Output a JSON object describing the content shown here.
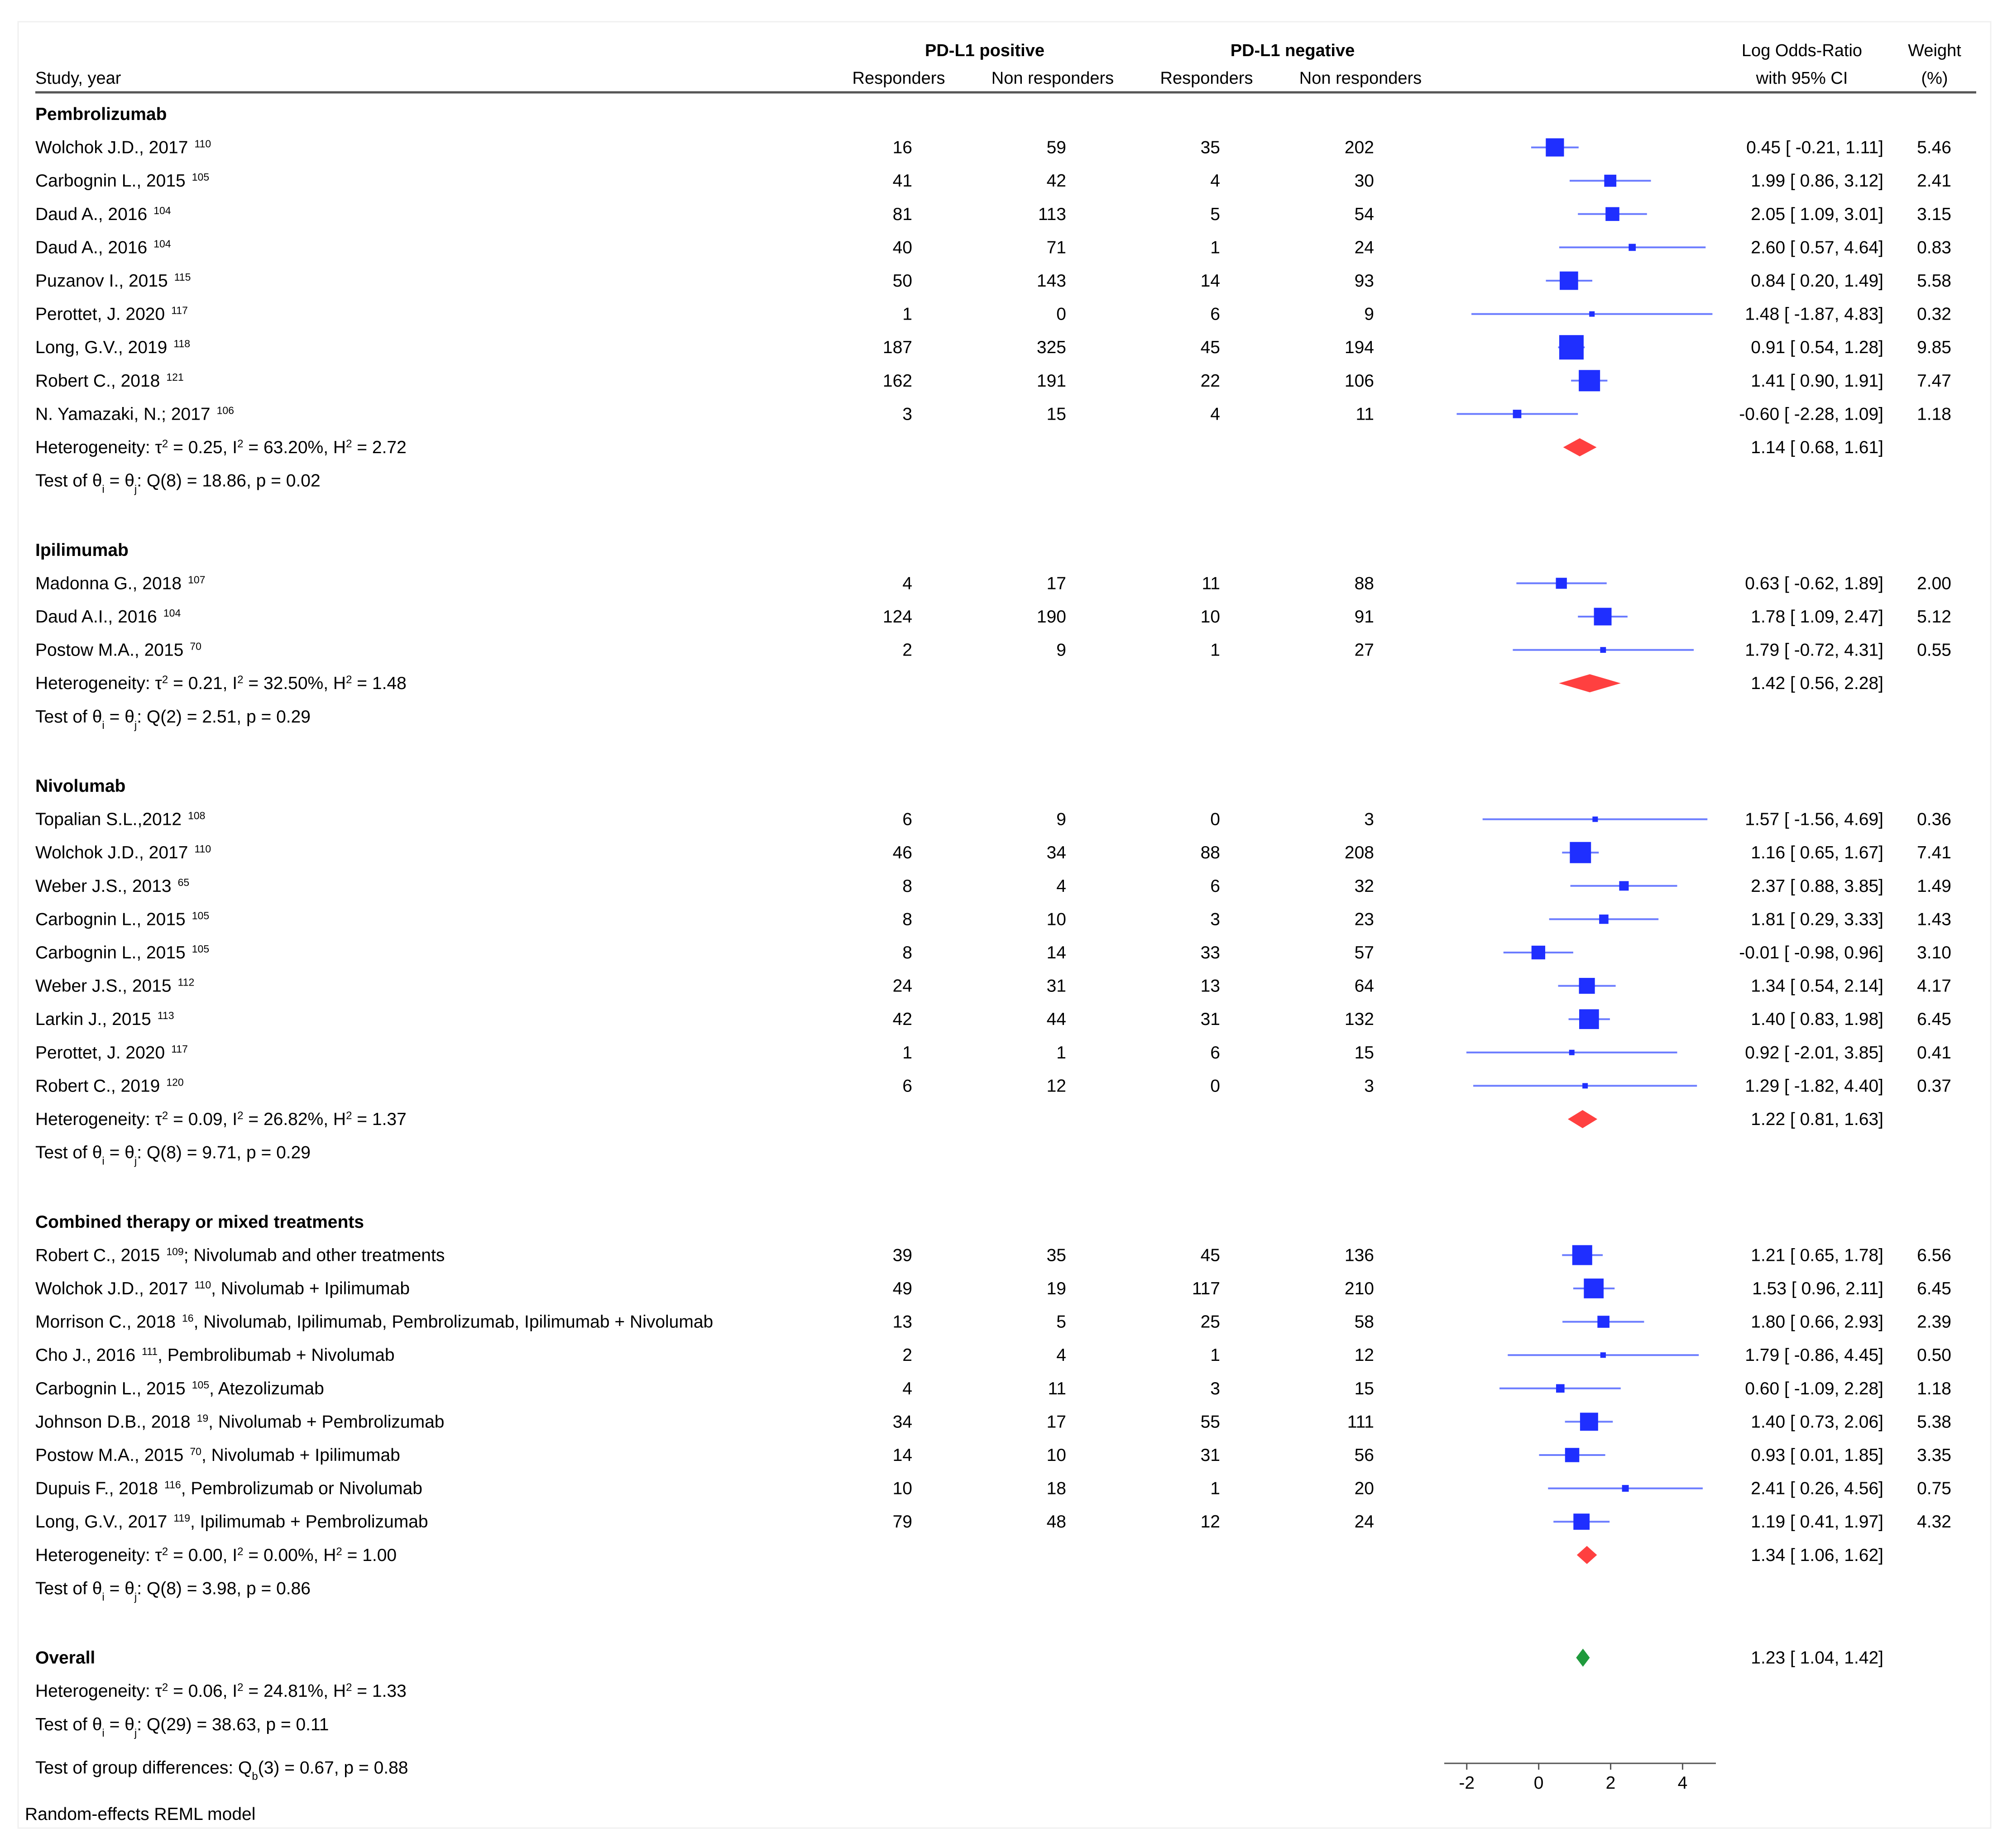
{
  "header": {
    "study": "Study, year",
    "group_positive": "PD-L1 positive",
    "group_negative": "PD-L1 negative",
    "responders": "Responders",
    "non_responders": "Non responders",
    "effect_line1": "Log Odds-Ratio",
    "effect_line2": "with 95% CI",
    "weight_line1": "Weight",
    "weight_line2": "(%)"
  },
  "colors": {
    "study_marker": "#1f2fff",
    "study_ci": "#6b7cff",
    "subgroup_diamond": "#ff4040",
    "overall_diamond": "#1f9a3c",
    "axis": "#555555"
  },
  "chart_data": {
    "type": "forest",
    "xlabel": "",
    "xlim": [
      -2.5,
      4.8
    ],
    "xticks": [
      -2,
      0,
      2,
      4
    ],
    "model": "Random-effects REML model",
    "group_differences": {
      "prefix": "Test of group differences: Q",
      "subscript": "b",
      "suffix": "(3) = 0.67, p = 0.88"
    },
    "groups": [
      {
        "name": "Pembrolizumab",
        "studies": [
          {
            "label": "Wolchok J.D., 2017",
            "ref": "110",
            "note": "",
            "pos_r": "16",
            "pos_nr": "59",
            "neg_r": "35",
            "neg_nr": "202",
            "est": 0.45,
            "lo": -0.21,
            "hi": 1.11,
            "effect": "0.45 [ -0.21,  1.11]",
            "weight": "5.46"
          },
          {
            "label": "Carbognin L., 2015",
            "ref": "105",
            "note": "",
            "pos_r": "41",
            "pos_nr": "42",
            "neg_r": "4",
            "neg_nr": "30",
            "est": 1.99,
            "lo": 0.86,
            "hi": 3.12,
            "effect": "1.99 [  0.86,  3.12]",
            "weight": "2.41"
          },
          {
            "label": "Daud A., 2016",
            "ref": "104",
            "note": "",
            "pos_r": "81",
            "pos_nr": "113",
            "neg_r": "5",
            "neg_nr": "54",
            "est": 2.05,
            "lo": 1.09,
            "hi": 3.01,
            "effect": "2.05 [  1.09,  3.01]",
            "weight": "3.15"
          },
          {
            "label": "Daud A., 2016",
            "ref": "104",
            "note": "",
            "pos_r": "40",
            "pos_nr": "71",
            "neg_r": "1",
            "neg_nr": "24",
            "est": 2.6,
            "lo": 0.57,
            "hi": 4.64,
            "effect": "2.60 [  0.57,  4.64]",
            "weight": "0.83"
          },
          {
            "label": "Puzanov I., 2015",
            "ref": "115",
            "note": "",
            "pos_r": "50",
            "pos_nr": "143",
            "neg_r": "14",
            "neg_nr": "93",
            "est": 0.84,
            "lo": 0.2,
            "hi": 1.49,
            "effect": "0.84 [  0.20,  1.49]",
            "weight": "5.58"
          },
          {
            "label": "Perottet, J. 2020",
            "ref": "117",
            "note": "",
            "pos_r": "1",
            "pos_nr": "0",
            "neg_r": "6",
            "neg_nr": "9",
            "est": 1.48,
            "lo": -1.87,
            "hi": 4.83,
            "effect": "1.48 [ -1.87,  4.83]",
            "weight": "0.32"
          },
          {
            "label": "Long, G.V., 2019",
            "ref": "118",
            "note": "",
            "pos_r": "187",
            "pos_nr": "325",
            "neg_r": "45",
            "neg_nr": "194",
            "est": 0.91,
            "lo": 0.54,
            "hi": 1.28,
            "effect": "0.91 [  0.54,  1.28]",
            "weight": "9.85"
          },
          {
            "label": "Robert C., 2018",
            "ref": "121",
            "note": "",
            "pos_r": "162",
            "pos_nr": "191",
            "neg_r": "22",
            "neg_nr": "106",
            "est": 1.41,
            "lo": 0.9,
            "hi": 1.91,
            "effect": "1.41 [  0.90,  1.91]",
            "weight": "7.47"
          },
          {
            "label": "N. Yamazaki, N.;  2017",
            "ref": "106",
            "note": "",
            "pos_r": "3",
            "pos_nr": "15",
            "neg_r": "4",
            "neg_nr": "11",
            "est": -0.6,
            "lo": -2.28,
            "hi": 1.09,
            "effect": "-0.60 [ -2.28,  1.09]",
            "weight": "1.18"
          }
        ],
        "heterogeneity": {
          "tau2": "0.25",
          "I2": "63.20%",
          "H2": "2.72"
        },
        "test": {
          "Q": "Q(8) = 18.86",
          "p": "p = 0.02"
        },
        "summary": {
          "est": 1.14,
          "lo": 0.68,
          "hi": 1.61,
          "effect": "1.14 [  0.68,  1.61]"
        }
      },
      {
        "name": "Ipilimumab",
        "studies": [
          {
            "label": "Madonna G., 2018",
            "ref": "107",
            "note": "",
            "pos_r": "4",
            "pos_nr": "17",
            "neg_r": "11",
            "neg_nr": "88",
            "est": 0.63,
            "lo": -0.62,
            "hi": 1.89,
            "effect": "0.63 [ -0.62,  1.89]",
            "weight": "2.00"
          },
          {
            "label": "Daud A.I., 2016",
            "ref": "104",
            "note": "",
            "pos_r": "124",
            "pos_nr": "190",
            "neg_r": "10",
            "neg_nr": "91",
            "est": 1.78,
            "lo": 1.09,
            "hi": 2.47,
            "effect": "1.78 [  1.09,  2.47]",
            "weight": "5.12"
          },
          {
            "label": "Postow M.A., 2015",
            "ref": "70",
            "note": "",
            "pos_r": "2",
            "pos_nr": "9",
            "neg_r": "1",
            "neg_nr": "27",
            "est": 1.79,
            "lo": -0.72,
            "hi": 4.31,
            "effect": "1.79 [ -0.72,  4.31]",
            "weight": "0.55"
          }
        ],
        "heterogeneity": {
          "tau2": "0.21",
          "I2": "32.50%",
          "H2": "1.48"
        },
        "test": {
          "Q": "Q(2) = 2.51",
          "p": "p = 0.29"
        },
        "summary": {
          "est": 1.42,
          "lo": 0.56,
          "hi": 2.28,
          "effect": "1.42 [  0.56,  2.28]"
        }
      },
      {
        "name": "Nivolumab",
        "studies": [
          {
            "label": "Topalian S.L.,2012",
            "ref": "108",
            "note": "",
            "pos_r": "6",
            "pos_nr": "9",
            "neg_r": "0",
            "neg_nr": "3",
            "est": 1.57,
            "lo": -1.56,
            "hi": 4.69,
            "effect": "1.57 [ -1.56,  4.69]",
            "weight": "0.36"
          },
          {
            "label": "Wolchok J.D., 2017",
            "ref": "110",
            "note": "",
            "pos_r": "46",
            "pos_nr": "34",
            "neg_r": "88",
            "neg_nr": "208",
            "est": 1.16,
            "lo": 0.65,
            "hi": 1.67,
            "effect": "1.16 [  0.65,  1.67]",
            "weight": "7.41"
          },
          {
            "label": "Weber J.S., 2013",
            "ref": "65",
            "note": "",
            "pos_r": "8",
            "pos_nr": "4",
            "neg_r": "6",
            "neg_nr": "32",
            "est": 2.37,
            "lo": 0.88,
            "hi": 3.85,
            "effect": "2.37 [  0.88,  3.85]",
            "weight": "1.49"
          },
          {
            "label": "Carbognin L., 2015",
            "ref": "105",
            "note": "",
            "pos_r": "8",
            "pos_nr": "10",
            "neg_r": "3",
            "neg_nr": "23",
            "est": 1.81,
            "lo": 0.29,
            "hi": 3.33,
            "effect": "1.81 [  0.29,  3.33]",
            "weight": "1.43"
          },
          {
            "label": "Carbognin L., 2015",
            "ref": "105",
            "note": "",
            "pos_r": "8",
            "pos_nr": "14",
            "neg_r": "33",
            "neg_nr": "57",
            "est": -0.01,
            "lo": -0.98,
            "hi": 0.96,
            "effect": "-0.01 [ -0.98,  0.96]",
            "weight": "3.10"
          },
          {
            "label": "Weber J.S., 2015",
            "ref": "112",
            "note": "",
            "pos_r": "24",
            "pos_nr": "31",
            "neg_r": "13",
            "neg_nr": "64",
            "est": 1.34,
            "lo": 0.54,
            "hi": 2.14,
            "effect": "1.34 [  0.54,  2.14]",
            "weight": "4.17"
          },
          {
            "label": "Larkin J., 2015",
            "ref": "113",
            "note": "",
            "pos_r": "42",
            "pos_nr": "44",
            "neg_r": "31",
            "neg_nr": "132",
            "est": 1.4,
            "lo": 0.83,
            "hi": 1.98,
            "effect": "1.40 [  0.83,  1.98]",
            "weight": "6.45"
          },
          {
            "label": "Perottet, J. 2020",
            "ref": "117",
            "note": "",
            "pos_r": "1",
            "pos_nr": "1",
            "neg_r": "6",
            "neg_nr": "15",
            "est": 0.92,
            "lo": -2.01,
            "hi": 3.85,
            "effect": "0.92 [ -2.01,  3.85]",
            "weight": "0.41"
          },
          {
            "label": "Robert C., 2019",
            "ref": "120",
            "note": "",
            "pos_r": "6",
            "pos_nr": "12",
            "neg_r": "0",
            "neg_nr": "3",
            "est": 1.29,
            "lo": -1.82,
            "hi": 4.4,
            "effect": "1.29 [ -1.82,  4.40]",
            "weight": "0.37"
          }
        ],
        "heterogeneity": {
          "tau2": "0.09",
          "I2": "26.82%",
          "H2": "1.37"
        },
        "test": {
          "Q": "Q(8) = 9.71",
          "p": "p = 0.29"
        },
        "summary": {
          "est": 1.22,
          "lo": 0.81,
          "hi": 1.63,
          "effect": "1.22 [  0.81,  1.63]"
        }
      },
      {
        "name": "Combined therapy or mixed treatments",
        "studies": [
          {
            "label": "Robert C., 2015",
            "ref": "109",
            "note": "; Nivolumab and other treatments",
            "pos_r": "39",
            "pos_nr": "35",
            "neg_r": "45",
            "neg_nr": "136",
            "est": 1.21,
            "lo": 0.65,
            "hi": 1.78,
            "effect": "1.21 [  0.65,  1.78]",
            "weight": "6.56"
          },
          {
            "label": "Wolchok J.D., 2017",
            "ref": "110",
            "note": ", Nivolumab + Ipilimumab",
            "pos_r": "49",
            "pos_nr": "19",
            "neg_r": "117",
            "neg_nr": "210",
            "est": 1.53,
            "lo": 0.96,
            "hi": 2.11,
            "effect": "1.53 [  0.96,  2.11]",
            "weight": "6.45"
          },
          {
            "label": "Morrison C., 2018",
            "ref": "16",
            "note": ", Nivolumab, Ipilimumab, Pembrolizumab, Ipilimumab + Nivolumab",
            "pos_r": "13",
            "pos_nr": "5",
            "neg_r": "25",
            "neg_nr": "58",
            "est": 1.8,
            "lo": 0.66,
            "hi": 2.93,
            "effect": "1.80 [  0.66,  2.93]",
            "weight": "2.39"
          },
          {
            "label": "Cho J., 2016",
            "ref": "111",
            "note": ", Pembrolibumab + Nivolumab",
            "pos_r": "2",
            "pos_nr": "4",
            "neg_r": "1",
            "neg_nr": "12",
            "est": 1.79,
            "lo": -0.86,
            "hi": 4.45,
            "effect": "1.79 [ -0.86,  4.45]",
            "weight": "0.50"
          },
          {
            "label": "Carbognin L., 2015",
            "ref": "105",
            "note": ", Atezolizumab",
            "pos_r": "4",
            "pos_nr": "11",
            "neg_r": "3",
            "neg_nr": "15",
            "est": 0.6,
            "lo": -1.09,
            "hi": 2.28,
            "effect": "0.60 [ -1.09,  2.28]",
            "weight": "1.18"
          },
          {
            "label": "Johnson D.B., 2018",
            "ref": "19",
            "note": ", Nivolumab + Pembrolizumab",
            "pos_r": "34",
            "pos_nr": "17",
            "neg_r": "55",
            "neg_nr": "111",
            "est": 1.4,
            "lo": 0.73,
            "hi": 2.06,
            "effect": "1.40 [  0.73,  2.06]",
            "weight": "5.38"
          },
          {
            "label": "Postow M.A., 2015",
            "ref": "70",
            "note": ", Nivolumab + Ipilimumab",
            "pos_r": "14",
            "pos_nr": "10",
            "neg_r": "31",
            "neg_nr": "56",
            "est": 0.93,
            "lo": 0.01,
            "hi": 1.85,
            "effect": "0.93 [  0.01,  1.85]",
            "weight": "3.35"
          },
          {
            "label": "Dupuis F., 2018",
            "ref": "116",
            "note": ", Pembrolizumab or Nivolumab",
            "pos_r": "10",
            "pos_nr": "18",
            "neg_r": "1",
            "neg_nr": "20",
            "est": 2.41,
            "lo": 0.26,
            "hi": 4.56,
            "effect": "2.41 [  0.26,  4.56]",
            "weight": "0.75"
          },
          {
            "label": "Long, G.V., 2017",
            "ref": "119",
            "note": ", Ipilimumab + Pembrolizumab",
            "pos_r": "79",
            "pos_nr": "48",
            "neg_r": "12",
            "neg_nr": "24",
            "est": 1.19,
            "lo": 0.41,
            "hi": 1.97,
            "effect": "1.19 [  0.41,  1.97]",
            "weight": "4.32"
          }
        ],
        "heterogeneity": {
          "tau2": "0.00",
          "I2": "0.00%",
          "H2": "1.00"
        },
        "test": {
          "Q": "Q(8) = 3.98",
          "p": "p = 0.86"
        },
        "summary": {
          "est": 1.34,
          "lo": 1.06,
          "hi": 1.62,
          "effect": "1.34 [  1.06,  1.62]"
        }
      }
    ],
    "overall": {
      "label": "Overall",
      "est": 1.23,
      "lo": 1.04,
      "hi": 1.42,
      "effect": "1.23 [  1.04,  1.42]",
      "heterogeneity": {
        "tau2": "0.06",
        "I2": "24.81%",
        "H2": "1.33"
      },
      "test": {
        "Q": "Q(29) = 38.63",
        "p": "p = 0.11"
      }
    }
  }
}
